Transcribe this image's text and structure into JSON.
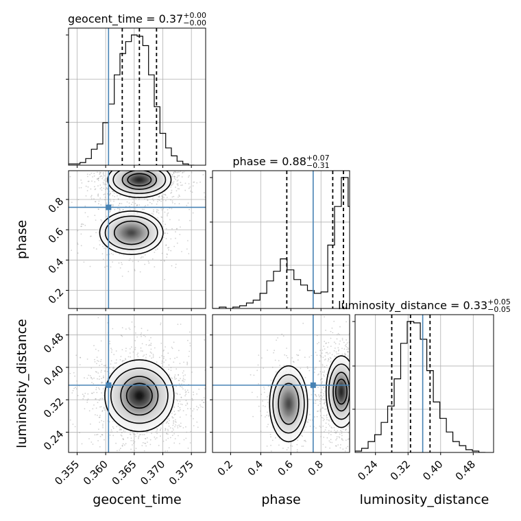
{
  "chart_data": {
    "type": "corner",
    "parameters": [
      "geocent_time",
      "phase",
      "luminosity_distance"
    ],
    "axis_labels": {
      "geocent_time": "geocent_time",
      "phase": "phase",
      "luminosity_distance": "luminosity_distance"
    },
    "ranges": {
      "geocent_time": [
        0.3535,
        0.3775
      ],
      "phase": [
        0.08,
        0.99
      ],
      "luminosity_distance": [
        0.19,
        0.53
      ]
    },
    "ticks": {
      "geocent_time": [
        0.355,
        0.36,
        0.365,
        0.37,
        0.375
      ],
      "phase": [
        0.2,
        0.4,
        0.6,
        0.8
      ],
      "luminosity_distance": [
        0.24,
        0.32,
        0.4,
        0.48
      ]
    },
    "tick_labels": {
      "geocent_time": [
        "0.355",
        "0.360",
        "0.365",
        "0.370",
        "0.375"
      ],
      "phase": [
        "0.2",
        "0.4",
        "0.6",
        "0.8"
      ],
      "luminosity_distance": [
        "0.24",
        "0.32",
        "0.40",
        "0.48"
      ]
    },
    "truths": {
      "geocent_time": 0.3605,
      "phase": 0.748,
      "luminosity_distance": 0.356
    },
    "titles": [
      {
        "param": "geocent_time",
        "text": "geocent_time = 0.37",
        "plus": "+0.00",
        "minus": "−0.00"
      },
      {
        "param": "phase",
        "text": "phase = 0.88",
        "plus": "+0.07",
        "minus": "−0.31"
      },
      {
        "param": "luminosity_distance",
        "text": "luminosity_distance = 0.33",
        "plus": "+0.05",
        "minus": "−0.05"
      }
    ],
    "quantiles": {
      "geocent_time": [
        0.3629,
        0.3659,
        0.3689
      ],
      "phase": [
        0.573,
        0.878,
        0.949
      ],
      "luminosity_distance": [
        0.28,
        0.326,
        0.374
      ]
    },
    "histograms": {
      "geocent_time": {
        "edges": [
          0.3535,
          0.3545,
          0.3555,
          0.3565,
          0.3575,
          0.3585,
          0.3595,
          0.3605,
          0.3615,
          0.3625,
          0.3635,
          0.3645,
          0.3655,
          0.3665,
          0.3675,
          0.3685,
          0.3695,
          0.3705,
          0.3715,
          0.3725,
          0.3735,
          0.3745,
          0.3755
        ],
        "counts": [
          0.01,
          0.01,
          0.02,
          0.05,
          0.12,
          0.16,
          0.32,
          0.46,
          0.68,
          0.84,
          0.93,
          0.98,
          0.97,
          0.9,
          0.68,
          0.44,
          0.24,
          0.13,
          0.07,
          0.03,
          0.01,
          0.0
        ]
      },
      "phase": {
        "edges": [
          0.08,
          0.125,
          0.17,
          0.215,
          0.26,
          0.305,
          0.35,
          0.395,
          0.44,
          0.485,
          0.53,
          0.575,
          0.62,
          0.665,
          0.71,
          0.755,
          0.8,
          0.845,
          0.89,
          0.935,
          0.98,
          0.99
        ],
        "counts": [
          0.0,
          0.01,
          0.0,
          0.01,
          0.02,
          0.04,
          0.06,
          0.11,
          0.2,
          0.27,
          0.36,
          0.28,
          0.21,
          0.17,
          0.13,
          0.11,
          0.12,
          0.46,
          0.74,
          0.95,
          0.74
        ]
      },
      "luminosity_distance": {
        "edges": [
          0.19,
          0.206,
          0.222,
          0.238,
          0.254,
          0.27,
          0.286,
          0.302,
          0.318,
          0.334,
          0.35,
          0.366,
          0.382,
          0.398,
          0.414,
          0.43,
          0.446,
          0.462,
          0.478,
          0.494,
          0.51
        ],
        "counts": [
          0.01,
          0.03,
          0.08,
          0.13,
          0.22,
          0.34,
          0.54,
          0.8,
          0.96,
          0.95,
          0.83,
          0.6,
          0.37,
          0.25,
          0.15,
          0.08,
          0.05,
          0.02,
          0.01,
          0.0
        ]
      }
    },
    "gradient_colors": [
      "#ffffff",
      "#000000"
    ],
    "truth_color": "#4682b4",
    "grid": true
  }
}
